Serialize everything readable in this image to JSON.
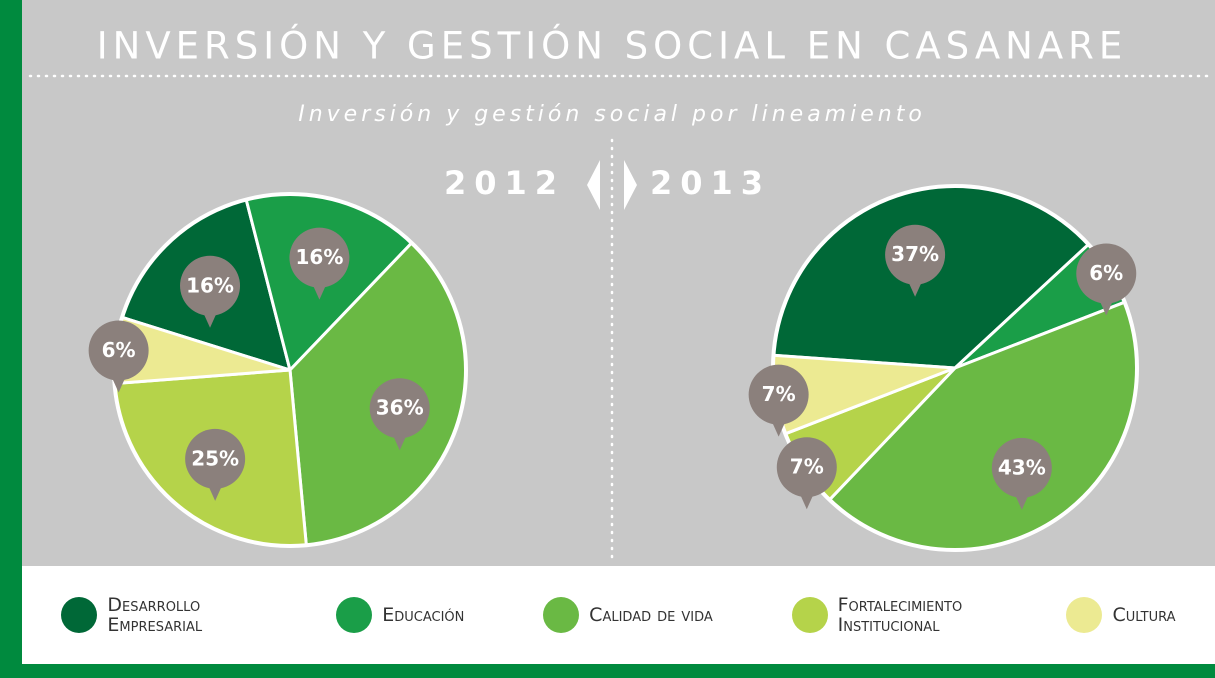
{
  "title": "INVERSIÓN Y GESTIÓN SOCIAL EN CASANARE",
  "subtitle": "Inversión y gestión social por lineamiento",
  "chart_data": [
    {
      "type": "pie",
      "title": "2012",
      "categories": [
        "Desarrollo Empresarial",
        "Educación",
        "Calidad de vida",
        "Fortalecimiento Institucional",
        "Cultura"
      ],
      "values": [
        16,
        16,
        36,
        25,
        6
      ],
      "value_labels": [
        "16%",
        "16%",
        "36%",
        "25%",
        "6%"
      ],
      "colors": [
        "#006837",
        "#1a9e48",
        "#6ab944",
        "#b5d34a",
        "#ecea92"
      ]
    },
    {
      "type": "pie",
      "title": "2013",
      "categories": [
        "Desarrollo Empresarial",
        "Educación",
        "Calidad de vida",
        "Fortalecimiento Institucional",
        "Cultura"
      ],
      "values": [
        37,
        6,
        43,
        7,
        7
      ],
      "value_labels": [
        "37%",
        "6%",
        "43%",
        "7%",
        "7%"
      ],
      "colors": [
        "#006837",
        "#1a9e48",
        "#6ab944",
        "#b5d34a",
        "#ecea92"
      ]
    }
  ]
}
